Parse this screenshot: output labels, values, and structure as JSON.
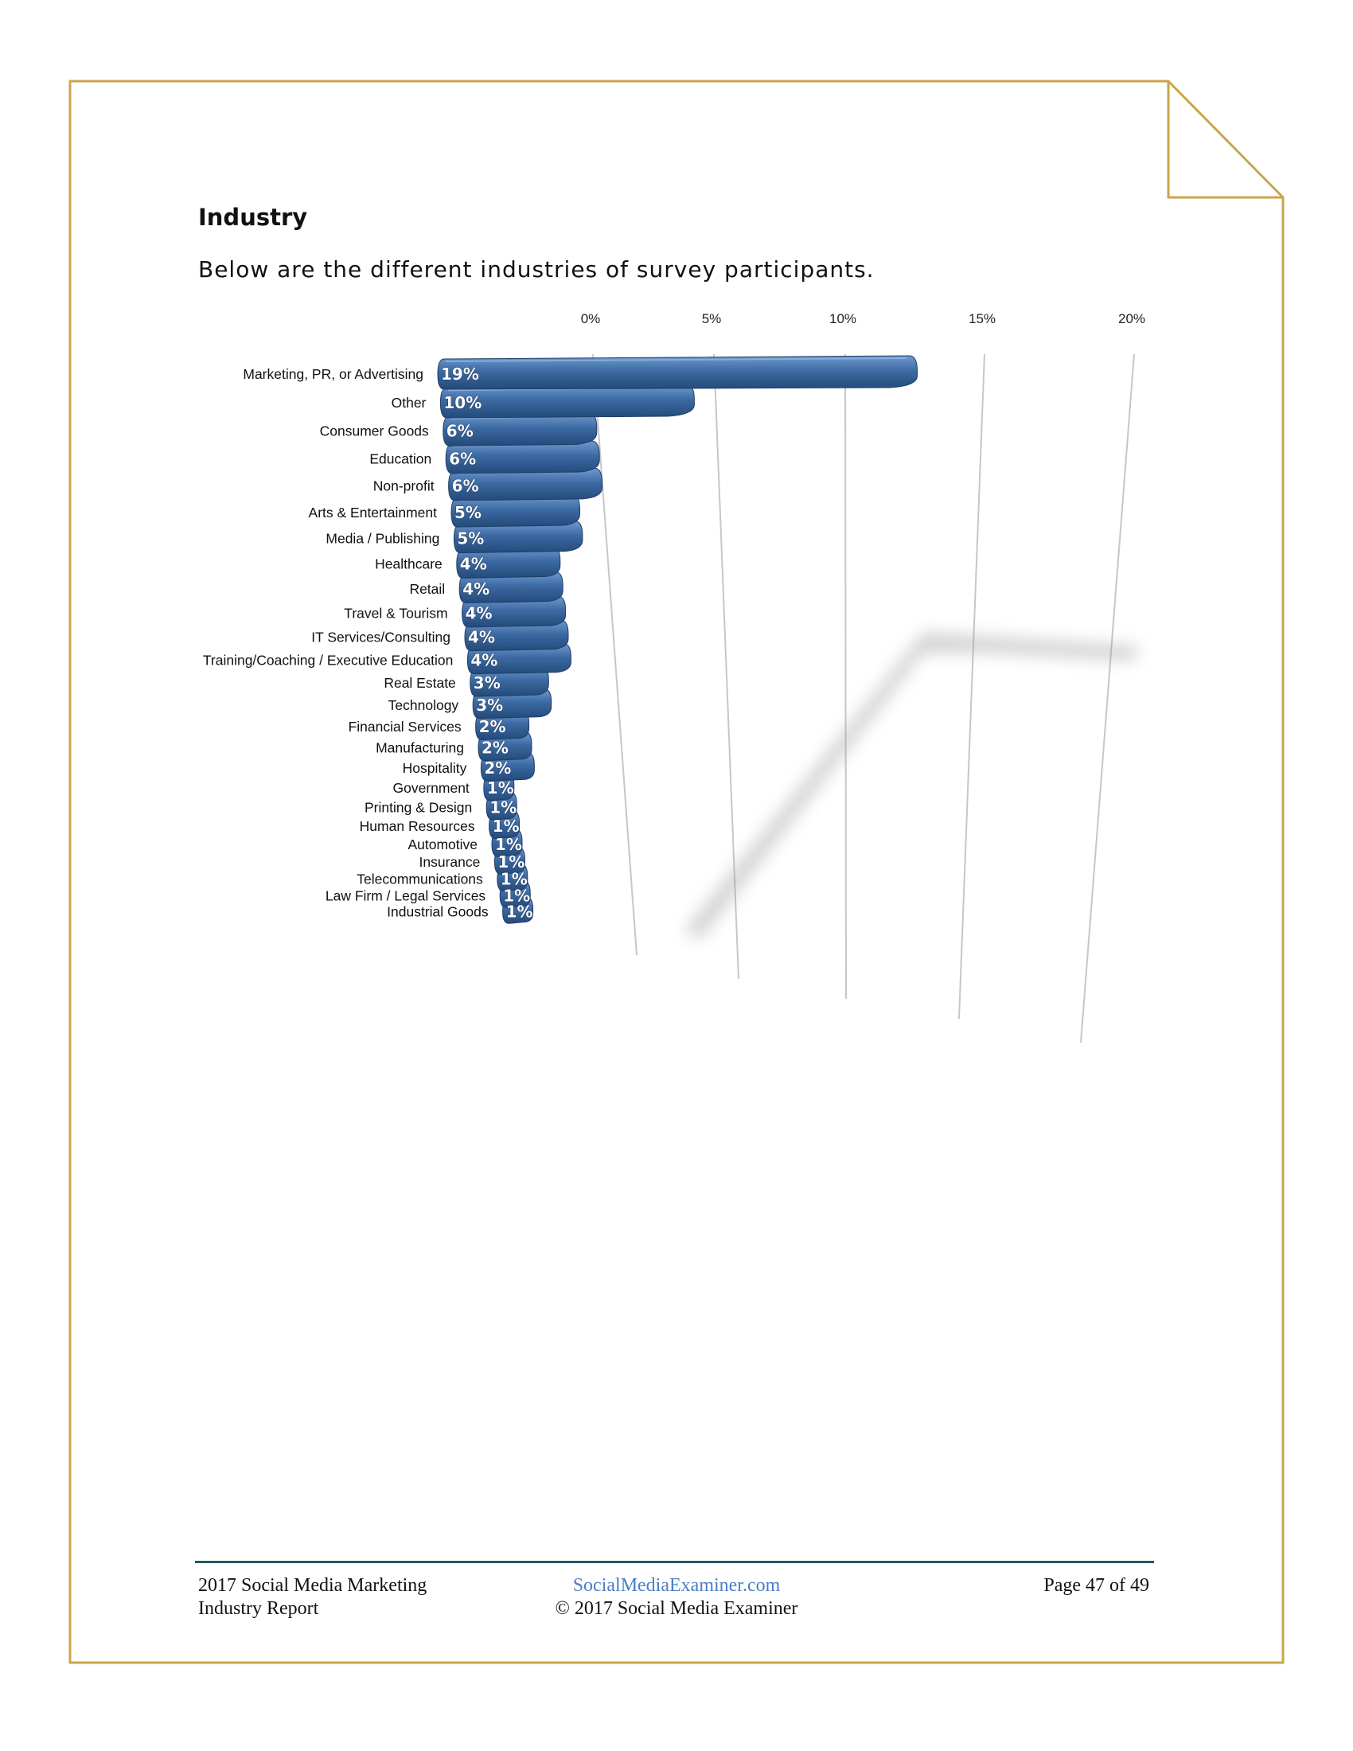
{
  "page": {
    "heading": "Industry",
    "intro": "Below are the different industries of survey participants."
  },
  "footer": {
    "report_line1": "2017 Social Media Marketing",
    "report_line2": "Industry Report",
    "site": "SocialMediaExaminer.com",
    "copyright": "© 2017 Social Media Examiner",
    "page_number": "Page 47 of 49"
  },
  "colors": {
    "frame": "#c9a64a",
    "bar": "#3d6aa3",
    "bar_dark": "#234a7a",
    "bar_light": "#6f9bd0",
    "footer_rule": "#1f5a60",
    "link": "#4a7ec4"
  },
  "chart_data": {
    "type": "bar",
    "orientation": "horizontal",
    "categories": [
      "Marketing, PR, or Advertising",
      "Other",
      "Consumer Goods",
      "Education",
      "Non-profit",
      "Arts & Entertainment",
      "Media / Publishing",
      "Healthcare",
      "Retail",
      "Travel & Tourism",
      "IT Services/Consulting",
      "Training/Coaching / Executive Education",
      "Real Estate",
      "Technology",
      "Financial Services",
      "Manufacturing",
      "Hospitality",
      "Government",
      "Printing & Design",
      "Human Resources",
      "Automotive",
      "Insurance",
      "Telecommunications",
      "Law Firm / Legal Services",
      "Industrial Goods"
    ],
    "values": [
      19,
      10,
      6,
      6,
      6,
      5,
      5,
      4,
      4,
      4,
      4,
      4,
      3,
      3,
      2,
      2,
      2,
      1,
      1,
      1,
      1,
      1,
      1,
      1,
      1
    ],
    "data_labels": [
      "19%",
      "10%",
      "6%",
      "6%",
      "6%",
      "5%",
      "5%",
      "4%",
      "4%",
      "4%",
      "4%",
      "4%",
      "3%",
      "3%",
      "2%",
      "2%",
      "2%",
      "1%",
      "1%",
      "1%",
      "1%",
      "1%",
      "1%",
      "1%",
      "1%"
    ],
    "x_ticks": [
      "0%",
      "5%",
      "10%",
      "15%",
      "20%"
    ],
    "x_tick_values": [
      0,
      5,
      10,
      15,
      20
    ],
    "xlim": [
      0,
      20
    ],
    "grid": true,
    "legend": "none",
    "style": "3d-perspective"
  }
}
